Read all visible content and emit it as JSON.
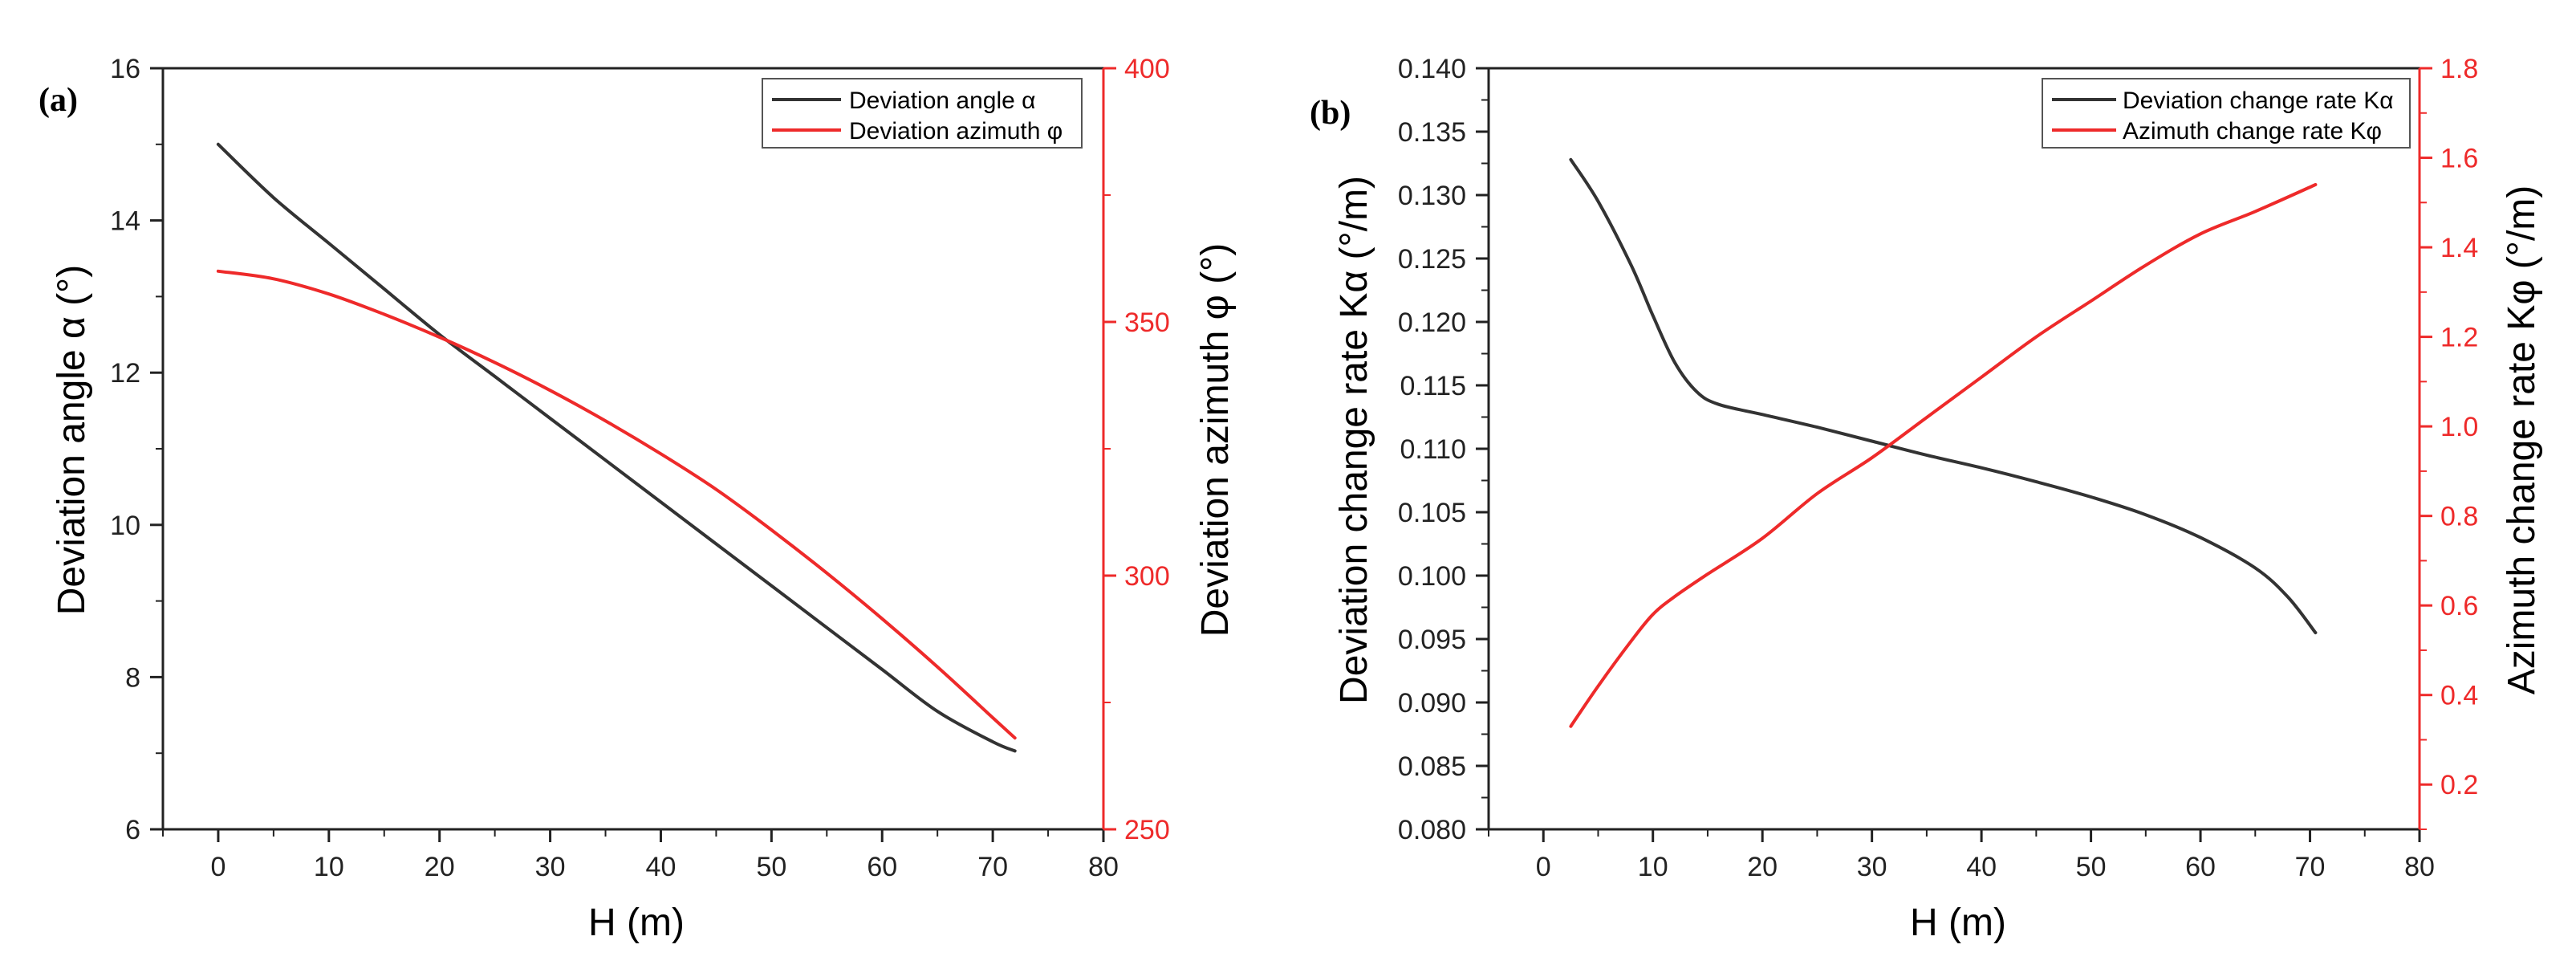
{
  "colors": {
    "black_series": "#333333",
    "red_series": "#ee2a2a",
    "axis": "#000000",
    "frame": "#333333"
  },
  "chart_data": [
    {
      "type": "line",
      "panel_label": "(a)",
      "xlabel": "H (m)",
      "ylabel_left": "Deviation angle α (°)",
      "ylabel_right": "Deviation azimuth φ (°)",
      "xlim": [
        -5,
        80
      ],
      "xticks": [
        0,
        10,
        20,
        30,
        40,
        50,
        60,
        70,
        80
      ],
      "ylim_left": [
        6,
        16
      ],
      "yticks_left": [
        6,
        8,
        10,
        12,
        14,
        16
      ],
      "ylim_right": [
        250,
        400
      ],
      "yticks_right": [
        250,
        300,
        350,
        400
      ],
      "legend_position": "top-right",
      "series": [
        {
          "name": "Deviation angle α",
          "axis": "left",
          "color": "black",
          "x": [
            0,
            5,
            10,
            15,
            20,
            25,
            30,
            35,
            40,
            45,
            50,
            55,
            60,
            65,
            70,
            72
          ],
          "y": [
            15.0,
            14.3,
            13.7,
            13.1,
            12.5,
            11.95,
            11.4,
            10.85,
            10.3,
            9.75,
            9.2,
            8.65,
            8.1,
            7.55,
            7.15,
            7.03
          ]
        },
        {
          "name": "Deviation azimuth φ",
          "axis": "right",
          "color": "red",
          "x": [
            0,
            5,
            10,
            15,
            20,
            25,
            30,
            35,
            40,
            45,
            50,
            55,
            60,
            65,
            70,
            72
          ],
          "y": [
            360,
            358.5,
            355.5,
            351.5,
            347,
            342,
            336.5,
            330.5,
            324,
            317,
            309,
            300.5,
            291.5,
            282,
            272,
            268
          ]
        }
      ]
    },
    {
      "type": "line",
      "panel_label": "(b)",
      "xlabel": "H (m)",
      "ylabel_left": "Deviation change rate Kα (°/m)",
      "ylabel_right": "Azimuth change rate Kφ (°/m)",
      "xlim": [
        -5,
        80
      ],
      "xticks": [
        0,
        10,
        20,
        30,
        40,
        50,
        60,
        70,
        80
      ],
      "ylim_left": [
        0.08,
        0.14
      ],
      "yticks_left": [
        "0.080",
        "0.085",
        "0.090",
        "0.095",
        "0.100",
        "0.105",
        "0.110",
        "0.115",
        "0.120",
        "0.125",
        "0.130",
        "0.135",
        "0.140"
      ],
      "ylim_right": [
        0.1,
        1.8
      ],
      "yticks_right": [
        "0.2",
        "0.4",
        "0.6",
        "0.8",
        "1.0",
        "1.2",
        "1.4",
        "1.6",
        "1.8"
      ],
      "legend_position": "top-right",
      "series": [
        {
          "name": "Deviation change rate Kα",
          "axis": "left",
          "color": "black",
          "x": [
            2.5,
            5,
            8,
            10,
            12,
            14,
            16,
            20,
            25,
            30,
            35,
            40,
            45,
            50,
            55,
            60,
            65,
            68,
            70.5
          ],
          "y": [
            0.1328,
            0.1295,
            0.1245,
            0.1205,
            0.1168,
            0.1145,
            0.1135,
            0.1127,
            0.1117,
            0.1106,
            0.1095,
            0.1085,
            0.1074,
            0.1062,
            0.1048,
            0.103,
            0.1006,
            0.0983,
            0.0955
          ]
        },
        {
          "name": "Azimuth change rate Kφ",
          "axis": "right",
          "color": "red",
          "x": [
            2.5,
            5,
            8,
            10,
            12,
            15,
            20,
            25,
            30,
            35,
            40,
            45,
            50,
            55,
            60,
            65,
            70.5
          ],
          "y": [
            0.33,
            0.42,
            0.52,
            0.58,
            0.62,
            0.67,
            0.75,
            0.85,
            0.93,
            1.02,
            1.11,
            1.2,
            1.28,
            1.36,
            1.43,
            1.48,
            1.54
          ]
        }
      ]
    }
  ]
}
